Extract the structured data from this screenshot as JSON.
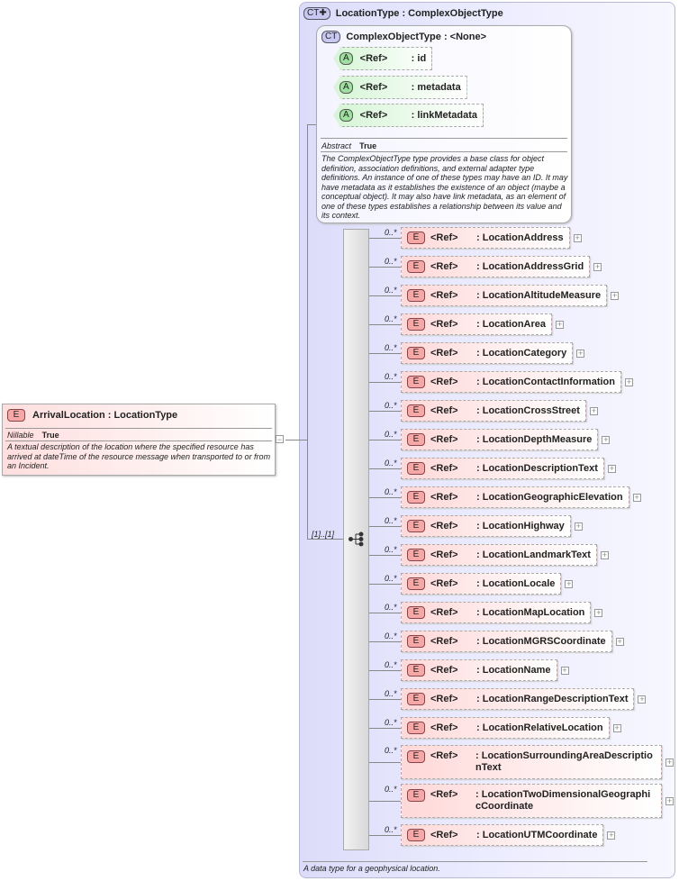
{
  "arrival": {
    "badge": "E",
    "title": "ArrivalLocation : LocationType",
    "prop_name": "Nillable",
    "prop_value": "True",
    "description": "A textual description of the location where the specified resource has arrived at dateTime of the resource message when transported to or from an Incident.",
    "collapse": "−"
  },
  "location_type": {
    "badge": "CT✚",
    "title": "LocationType : ComplexObjectType",
    "description": "A data type for a geophysical location."
  },
  "complex_object_type": {
    "badge": "CT",
    "title": "ComplexObjectType : <None>",
    "attributes": [
      {
        "badge": "A",
        "ref": "<Ref>",
        "name": ": id"
      },
      {
        "badge": "A",
        "ref": "<Ref>",
        "name": ": metadata"
      },
      {
        "badge": "A",
        "ref": "<Ref>",
        "name": ": linkMetadata"
      }
    ],
    "prop_name": "Abstract",
    "prop_value": "True",
    "description": "The ComplexObjectType type provides a base class for object definition, association definitions, and external adapter type definitions. An instance of one of these types may have an ID. It may have metadata as it establishes the existence of an object (maybe a conceptual object). It may also have link metadata, as an element of one of these types establishes a relationship between its value and its context."
  },
  "sequence": {
    "cardinality": "[1]..[1]",
    "icon": "sequence-icon"
  },
  "elements": [
    {
      "badge": "E",
      "ref": "<Ref>",
      "name": ": LocationAddress",
      "card": "0..*"
    },
    {
      "badge": "E",
      "ref": "<Ref>",
      "name": ": LocationAddressGrid",
      "card": "0..*"
    },
    {
      "badge": "E",
      "ref": "<Ref>",
      "name": ": LocationAltitudeMeasure",
      "card": "0..*"
    },
    {
      "badge": "E",
      "ref": "<Ref>",
      "name": ": LocationArea",
      "card": "0..*"
    },
    {
      "badge": "E",
      "ref": "<Ref>",
      "name": ": LocationCategory",
      "card": "0..*"
    },
    {
      "badge": "E",
      "ref": "<Ref>",
      "name": ": LocationContactInformation",
      "card": "0..*"
    },
    {
      "badge": "E",
      "ref": "<Ref>",
      "name": ": LocationCrossStreet",
      "card": "0..*"
    },
    {
      "badge": "E",
      "ref": "<Ref>",
      "name": ": LocationDepthMeasure",
      "card": "0..*"
    },
    {
      "badge": "E",
      "ref": "<Ref>",
      "name": ": LocationDescriptionText",
      "card": "0..*"
    },
    {
      "badge": "E",
      "ref": "<Ref>",
      "name": ": LocationGeographicElevation",
      "card": "0..*"
    },
    {
      "badge": "E",
      "ref": "<Ref>",
      "name": ": LocationHighway",
      "card": "0..*"
    },
    {
      "badge": "E",
      "ref": "<Ref>",
      "name": ": LocationLandmarkText",
      "card": "0..*"
    },
    {
      "badge": "E",
      "ref": "<Ref>",
      "name": ": LocationLocale",
      "card": "0..*"
    },
    {
      "badge": "E",
      "ref": "<Ref>",
      "name": ": LocationMapLocation",
      "card": "0..*"
    },
    {
      "badge": "E",
      "ref": "<Ref>",
      "name": ": LocationMGRSCoordinate",
      "card": "0..*"
    },
    {
      "badge": "E",
      "ref": "<Ref>",
      "name": ": LocationName",
      "card": "0..*"
    },
    {
      "badge": "E",
      "ref": "<Ref>",
      "name": ": LocationRangeDescriptionText",
      "card": "0..*"
    },
    {
      "badge": "E",
      "ref": "<Ref>",
      "name": ": LocationRelativeLocation",
      "card": "0..*"
    },
    {
      "badge": "E",
      "ref": "<Ref>",
      "name": ": LocationSurroundingAreaDescriptionText",
      "card": "0..*"
    },
    {
      "badge": "E",
      "ref": "<Ref>",
      "name": ": LocationTwoDimensionalGeographicCoordinate",
      "card": "0..*"
    },
    {
      "badge": "E",
      "ref": "<Ref>",
      "name": ": LocationUTMCoordinate",
      "card": "0..*"
    }
  ],
  "expand_symbol": "+"
}
